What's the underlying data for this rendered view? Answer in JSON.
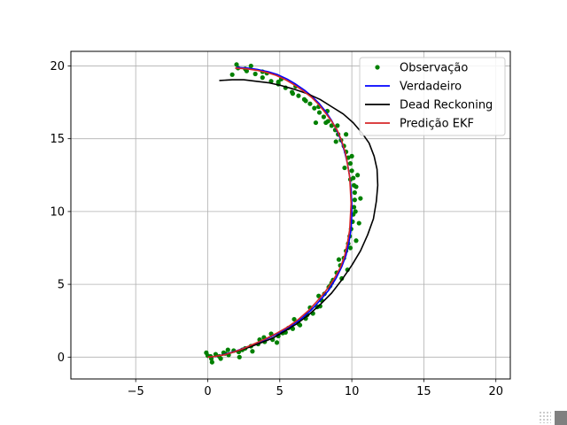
{
  "chart_data": {
    "type": "scatter",
    "title": "",
    "xlabel": "",
    "ylabel": "",
    "xlim": [
      -9.5,
      21
    ],
    "ylim": [
      -1.5,
      21
    ],
    "xticks": [
      -5,
      0,
      5,
      10,
      15,
      20
    ],
    "yticks": [
      0,
      5,
      10,
      15,
      20
    ],
    "xtick_labels": [
      "−5",
      "0",
      "5",
      "10",
      "15",
      "20"
    ],
    "ytick_labels": [
      "0",
      "5",
      "10",
      "15",
      "20"
    ],
    "grid": true,
    "legend_position": "top-right",
    "series": [
      {
        "name": "Observação",
        "kind": "points",
        "color": "#008000",
        "x": [
          0.0,
          0.25,
          0.55,
          0.8,
          1.1,
          1.45,
          1.8,
          2.15,
          2.6,
          3.0,
          3.5,
          3.95,
          4.5,
          4.9,
          5.4,
          5.9,
          6.3,
          6.8,
          7.3,
          7.6,
          7.9,
          8.1,
          8.4,
          8.7,
          8.95,
          9.2,
          9.45,
          9.6,
          9.75,
          9.85,
          9.95,
          10.05,
          10.1,
          10.15,
          10.2,
          10.2,
          10.15,
          10.1,
          10.0,
          9.9,
          9.75,
          9.6,
          9.45,
          9.25,
          9.05,
          8.85,
          8.6,
          8.35,
          8.05,
          7.75,
          7.4,
          7.1,
          6.7,
          6.3,
          5.85,
          5.4,
          4.9,
          4.4,
          3.8,
          3.3,
          2.7,
          2.1,
          -0.1,
          0.3,
          0.9,
          1.4,
          2.2,
          3.1,
          3.9,
          4.8,
          5.6,
          6.4,
          7.1,
          7.8,
          8.5,
          9.3,
          9.7,
          10.3,
          10.5,
          10.6,
          10.4,
          9.9,
          9.5,
          8.9,
          8.2,
          7.5,
          6.8,
          5.9,
          4.9,
          3.8,
          2.6,
          1.7,
          0.2,
          1.2,
          2.4,
          3.6,
          4.4,
          5.2,
          6.0,
          6.9,
          7.7,
          8.6,
          9.1,
          9.9,
          10.25,
          10.3,
          10.0,
          9.6,
          9.0,
          8.3,
          7.7,
          6.1,
          5.1,
          4.1,
          3.0,
          2.0
        ],
        "y": [
          0.1,
          -0.1,
          0.2,
          0.05,
          0.3,
          0.15,
          0.45,
          0.35,
          0.6,
          0.75,
          0.9,
          1.05,
          1.2,
          1.45,
          1.7,
          1.95,
          2.3,
          2.65,
          3.0,
          3.45,
          3.9,
          4.35,
          4.8,
          5.3,
          5.8,
          6.3,
          6.8,
          7.3,
          7.8,
          8.3,
          8.8,
          9.3,
          9.8,
          10.3,
          10.8,
          11.3,
          11.8,
          12.3,
          12.8,
          13.3,
          13.7,
          14.1,
          14.5,
          14.9,
          15.3,
          15.6,
          15.9,
          16.2,
          16.5,
          16.8,
          17.1,
          17.4,
          17.7,
          17.95,
          18.2,
          18.5,
          18.75,
          18.95,
          19.2,
          19.45,
          19.65,
          19.85,
          0.3,
          -0.35,
          -0.1,
          0.5,
          0.0,
          0.4,
          1.35,
          1.0,
          2.0,
          2.2,
          3.4,
          3.5,
          4.9,
          5.4,
          6.0,
          8.0,
          9.2,
          10.9,
          12.5,
          12.2,
          13.0,
          14.8,
          16.1,
          16.1,
          17.6,
          18.1,
          18.9,
          19.6,
          19.8,
          19.4,
          0.05,
          0.25,
          0.5,
          1.2,
          1.6,
          1.65,
          2.6,
          2.9,
          4.2,
          5.1,
          6.7,
          7.5,
          10.0,
          11.7,
          13.8,
          15.3,
          15.9,
          16.9,
          17.2,
          18.6,
          19.1,
          19.5,
          20.0,
          20.1
        ]
      },
      {
        "name": "Verdadeiro",
        "kind": "line",
        "color": "#0000ff",
        "x": [
          0,
          0.6,
          1.2,
          1.9,
          2.6,
          3.4,
          4.2,
          5.0,
          5.8,
          6.5,
          7.2,
          7.8,
          8.4,
          8.9,
          9.3,
          9.6,
          9.8,
          9.95,
          10.0,
          10.0,
          9.95,
          9.85,
          9.7,
          9.5,
          9.25,
          8.95,
          8.6,
          8.2,
          7.75,
          7.25,
          6.7,
          6.1,
          5.5,
          4.85,
          4.2,
          3.5,
          2.8,
          2.0
        ],
        "y": [
          0,
          0.05,
          0.2,
          0.4,
          0.65,
          0.95,
          1.3,
          1.7,
          2.15,
          2.65,
          3.25,
          3.9,
          4.6,
          5.4,
          6.2,
          7.0,
          7.9,
          8.8,
          9.7,
          10.6,
          11.5,
          12.4,
          13.3,
          14.1,
          14.9,
          15.6,
          16.25,
          16.85,
          17.4,
          17.9,
          18.35,
          18.75,
          19.1,
          19.4,
          19.6,
          19.75,
          19.85,
          19.9
        ]
      },
      {
        "name": "Dead Reckoning",
        "kind": "line",
        "color": "#000000",
        "x": [
          0,
          0.6,
          1.3,
          2.0,
          2.8,
          3.6,
          4.5,
          5.3,
          6.2,
          7.0,
          7.8,
          8.6,
          9.3,
          10.0,
          10.6,
          11.1,
          11.5,
          11.7,
          11.8,
          11.75,
          11.55,
          11.2,
          10.7,
          10.1,
          9.4,
          8.6,
          7.8,
          6.9,
          6.0,
          5.1,
          4.2,
          3.3,
          2.5,
          1.7,
          0.8
        ],
        "y": [
          0,
          0.05,
          0.2,
          0.4,
          0.65,
          0.95,
          1.3,
          1.75,
          2.3,
          2.9,
          3.6,
          4.4,
          5.3,
          6.3,
          7.3,
          8.4,
          9.5,
          10.7,
          11.8,
          12.9,
          13.8,
          14.7,
          15.4,
          16.1,
          16.7,
          17.2,
          17.7,
          18.1,
          18.4,
          18.65,
          18.85,
          18.95,
          19.05,
          19.05,
          19.0
        ]
      },
      {
        "name": "Predição EKF",
        "kind": "line",
        "color": "#d62728",
        "x": [
          0,
          0.5,
          1.1,
          1.8,
          2.5,
          3.2,
          4.0,
          4.8,
          5.6,
          6.3,
          7.0,
          7.6,
          8.2,
          8.75,
          9.2,
          9.5,
          9.7,
          9.85,
          9.9,
          9.95,
          9.9,
          9.85,
          9.7,
          9.55,
          9.3,
          9.0,
          8.6,
          8.15,
          7.7,
          7.2,
          6.6,
          6.0,
          5.4,
          4.75,
          4.1,
          3.4,
          2.7,
          1.9
        ],
        "y": [
          0,
          0.05,
          0.15,
          0.35,
          0.6,
          0.9,
          1.25,
          1.65,
          2.1,
          2.6,
          3.2,
          3.85,
          4.55,
          5.35,
          6.15,
          6.95,
          7.85,
          8.75,
          9.65,
          10.55,
          11.45,
          12.35,
          13.25,
          14.05,
          14.85,
          15.55,
          16.2,
          16.8,
          17.35,
          17.85,
          18.3,
          18.7,
          19.05,
          19.35,
          19.55,
          19.7,
          19.8,
          19.85
        ]
      }
    ]
  }
}
